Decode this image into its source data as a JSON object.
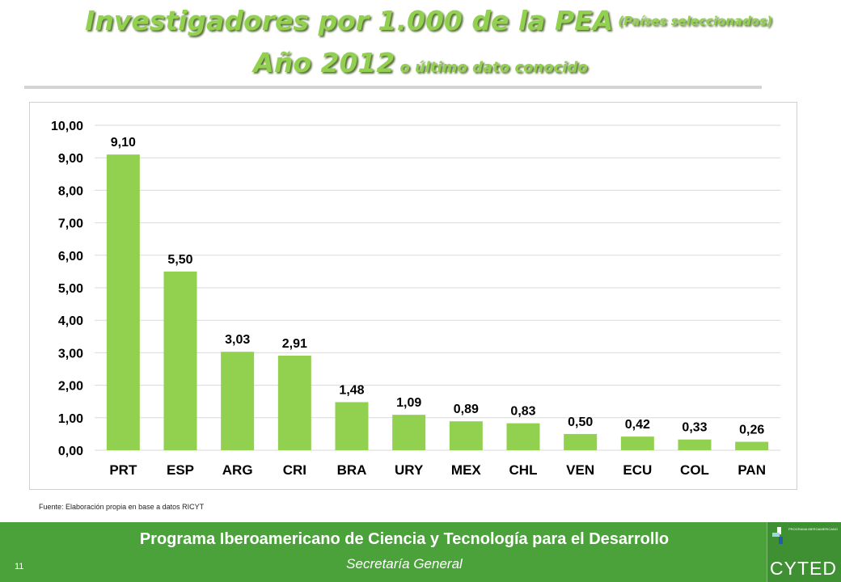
{
  "header": {
    "title_main": "Investigadores por 1.000 de la PEA",
    "title_note": "(Países seleccionados)",
    "subtitle_main": "Año 2012",
    "subtitle_note": "o último dato conocido"
  },
  "source_note": "Fuente: Elaboración propia en base a datos RICYT",
  "footer": {
    "program": "Programa Iberoamericano de Ciencia y Tecnología para el Desarrollo",
    "secretariat": "Secretaría General",
    "page_number": "11",
    "logo_text": "CYTED",
    "logo_caption": "PROGRAMA IBEROAMERICANO"
  },
  "colors": {
    "bar": "#92d050",
    "title": "#92d050",
    "footer": "#4ba23a",
    "grid": "#d9d9d9"
  },
  "chart_data": {
    "type": "bar",
    "categories": [
      "PRT",
      "ESP",
      "ARG",
      "CRI",
      "BRA",
      "URY",
      "MEX",
      "CHL",
      "VEN",
      "ECU",
      "COL",
      "PAN"
    ],
    "values": [
      9.1,
      5.5,
      3.03,
      2.91,
      1.48,
      1.09,
      0.89,
      0.83,
      0.5,
      0.42,
      0.33,
      0.26
    ],
    "value_labels": [
      "9,10",
      "5,50",
      "3,03",
      "2,91",
      "1,48",
      "1,09",
      "0,89",
      "0,83",
      "0,50",
      "0,42",
      "0,33",
      "0,26"
    ],
    "yticks": [
      "0,00",
      "1,00",
      "2,00",
      "3,00",
      "4,00",
      "5,00",
      "6,00",
      "7,00",
      "8,00",
      "9,00",
      "10,00"
    ],
    "ylim": [
      0,
      10
    ],
    "grid": true,
    "legend": "none",
    "title": "",
    "xlabel": "",
    "ylabel": ""
  }
}
